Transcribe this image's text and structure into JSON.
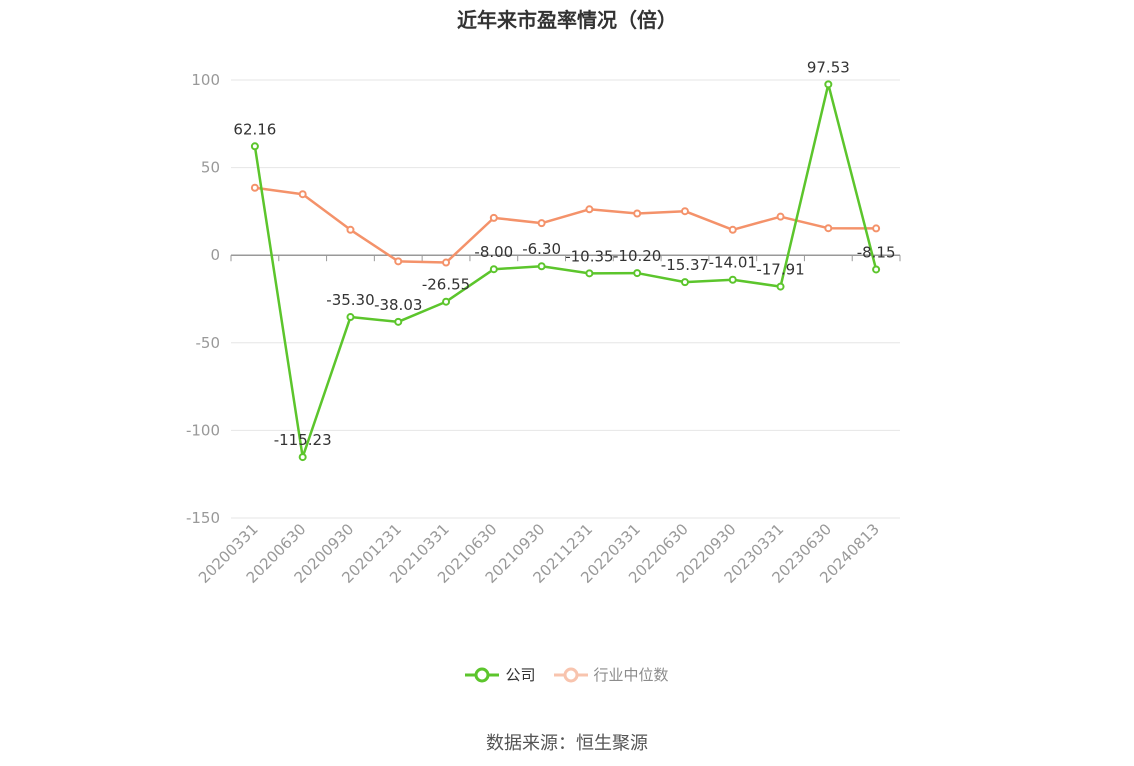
{
  "title": "近年来市盈率情况（倍）",
  "source": "数据来源：恒生聚源",
  "legend": [
    {
      "name": "公司",
      "color": "#5cc52c"
    },
    {
      "name": "行业中位数",
      "color": "#f4926a"
    }
  ],
  "chart_data": {
    "type": "line",
    "categories": [
      "20200331",
      "20200630",
      "20200930",
      "20201231",
      "20210331",
      "20210630",
      "20210930",
      "20211231",
      "20220331",
      "20220630",
      "20220930",
      "20230331",
      "20230630",
      "20240813"
    ],
    "ylim": [
      -150,
      100
    ],
    "yticks": [
      100,
      50,
      0,
      -50,
      -100,
      -150
    ],
    "grid": true,
    "legend_position": "bottom",
    "series": [
      {
        "name": "公司",
        "color": "#5cc52c",
        "values": [
          62.16,
          -115.23,
          -35.3,
          -38.03,
          -26.55,
          -8.0,
          -6.3,
          -10.35,
          -10.2,
          -15.37,
          -14.01,
          -17.91,
          97.53,
          -8.15
        ],
        "labels": [
          "62.16",
          "-115.23",
          "-35.30",
          "-38.03",
          "-26.55",
          "-8.00",
          "-6.30",
          "-10.35",
          "-10.20",
          "-15.37",
          "-14.01",
          "-17.91",
          "97.53",
          "-8.15"
        ]
      },
      {
        "name": "行业中位数",
        "color": "#f4926a",
        "values": [
          38.5,
          34.8,
          14.5,
          -3.5,
          -4.2,
          21.3,
          18.3,
          26.2,
          23.8,
          25.1,
          14.5,
          22.0,
          15.4,
          15.3
        ]
      }
    ]
  }
}
